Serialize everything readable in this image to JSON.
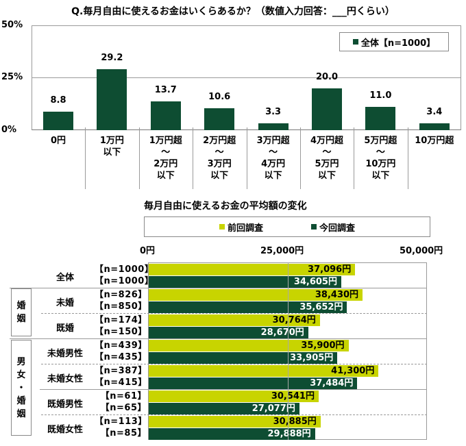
{
  "question": "Q.毎月自由に使えるお金はいくらあるか？（数値入力回答：___円くらい）",
  "chart_data": [
    {
      "type": "bar",
      "title": "Q.毎月自由に使えるお金はいくらあるか？（数値入力回答：___円くらい）",
      "categories": [
        "0円",
        "1万円以下",
        "1万円超～2万円以下",
        "2万円超～3万円以下",
        "3万円超～4万円以下",
        "4万円超～5万円以下",
        "5万円超～10万円以下",
        "10万円超"
      ],
      "series": [
        {
          "name": "全体【n=1000】",
          "values": [
            8.8,
            29.2,
            13.7,
            10.6,
            3.3,
            20.0,
            11.0,
            3.4
          ],
          "color": "#0e4d32"
        }
      ],
      "ylabel": "",
      "xlabel": "",
      "yticks": [
        "0%",
        "25%",
        "50%"
      ],
      "ylim": [
        0,
        50
      ],
      "grid": true,
      "legend_position": "top-right"
    },
    {
      "type": "bar",
      "orientation": "horizontal",
      "title": "毎月自由に使えるお金の平均額の変化",
      "categories": [
        "全体",
        "未婚",
        "既婚",
        "未婚男性",
        "未婚女性",
        "既婚男性",
        "既婚女性"
      ],
      "groups": [
        "",
        "婚姻",
        "婚姻",
        "男女・婚姻",
        "男女・婚姻",
        "男女・婚姻",
        "男女・婚姻"
      ],
      "series": [
        {
          "name": "前回調査",
          "color": "#c8d400",
          "values": [
            37096,
            38430,
            30764,
            35900,
            41300,
            30541,
            30885
          ],
          "n": [
            1000,
            826,
            174,
            439,
            387,
            61,
            113
          ]
        },
        {
          "name": "今回調査",
          "color": "#0e4d32",
          "values": [
            34605,
            35652,
            28670,
            33905,
            37484,
            27077,
            29888
          ],
          "n": [
            1000,
            850,
            150,
            435,
            415,
            65,
            85
          ]
        }
      ],
      "xticks": [
        "0円",
        "25,000円",
        "50,000円"
      ],
      "xlim": [
        0,
        50000
      ],
      "legend_position": "top"
    }
  ],
  "top": {
    "yticks": [
      "50%",
      "25%",
      "0%"
    ],
    "legend": "全体【n=1000】",
    "values": [
      "8.8",
      "29.2",
      "13.7",
      "10.6",
      "3.3",
      "20.0",
      "11.0",
      "3.4"
    ],
    "categories": [
      [
        "0円"
      ],
      [
        "1万円",
        "以下"
      ],
      [
        "1万円超",
        "～",
        "2万円",
        "以下"
      ],
      [
        "2万円超",
        "～",
        "3万円",
        "以下"
      ],
      [
        "3万円超",
        "～",
        "4万円",
        "以下"
      ],
      [
        "4万円超",
        "～",
        "5万円",
        "以下"
      ],
      [
        "5万円超",
        "～",
        "10万円",
        "以下"
      ],
      [
        "10万円超"
      ]
    ]
  },
  "bottom": {
    "title": "毎月自由に使えるお金の平均額の変化",
    "legend_prev": "前回調査",
    "legend_curr": "今回調査",
    "xticks": [
      "0円",
      "25,000円",
      "50,000円"
    ],
    "group_marital": "婚姻",
    "group_gender": "男女・婚姻",
    "rows": [
      {
        "label": "全体",
        "n_prev": "【n=1000】",
        "n_curr": "【n=1000】",
        "prev": "37,096円",
        "curr": "34,605円"
      },
      {
        "label": "未婚",
        "n_prev": "【n=826】",
        "n_curr": "【n=850】",
        "prev": "38,430円",
        "curr": "35,652円"
      },
      {
        "label": "既婚",
        "n_prev": "【n=174】",
        "n_curr": "【n=150】",
        "prev": "30,764円",
        "curr": "28,670円"
      },
      {
        "label": "未婚男性",
        "n_prev": "【n=439】",
        "n_curr": "【n=435】",
        "prev": "35,900円",
        "curr": "33,905円"
      },
      {
        "label": "未婚女性",
        "n_prev": "【n=387】",
        "n_curr": "【n=415】",
        "prev": "41,300円",
        "curr": "37,484円"
      },
      {
        "label": "既婚男性",
        "n_prev": "【n=61】",
        "n_curr": "【n=65】",
        "prev": "30,541円",
        "curr": "27,077円"
      },
      {
        "label": "既婚女性",
        "n_prev": "【n=113】",
        "n_curr": "【n=85】",
        "prev": "30,885円",
        "curr": "29,888円"
      }
    ]
  },
  "colors": {
    "prev": "#c8d400",
    "curr": "#0e4d32",
    "grid": "#999999"
  }
}
